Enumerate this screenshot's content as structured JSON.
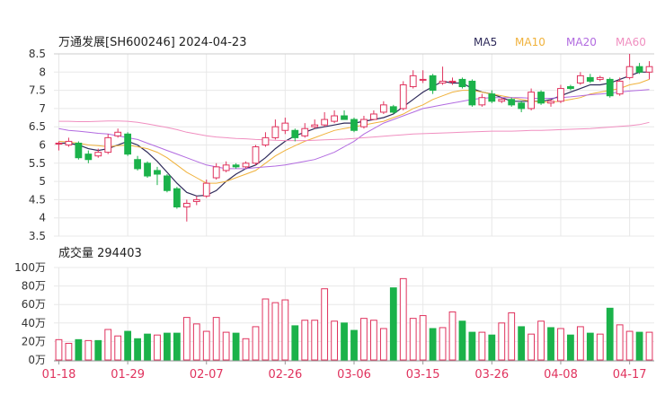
{
  "chart_data": {
    "type": "candlestick_with_volume",
    "title": "万通发展[SH600246] 2024-04-23",
    "price_panel": {
      "yticks": [
        "8.5",
        "8",
        "7.5",
        "7",
        "6.5",
        "6",
        "5.5",
        "5",
        "4.5",
        "4",
        "3.5"
      ],
      "ylim": [
        3.5,
        8.5
      ],
      "legend": [
        {
          "name": "MA5",
          "color": "#2e2a5a"
        },
        {
          "name": "MA10",
          "color": "#f0b23c"
        },
        {
          "name": "MA20",
          "color": "#b26be0"
        },
        {
          "name": "MA60",
          "color": "#f08fc0"
        }
      ],
      "candles": [
        [
          6.05,
          6.05,
          6.1,
          5.85
        ],
        [
          6.0,
          6.1,
          6.2,
          5.95
        ],
        [
          6.05,
          5.65,
          6.1,
          5.6
        ],
        [
          5.75,
          5.6,
          5.85,
          5.5
        ],
        [
          5.7,
          5.8,
          5.9,
          5.65
        ],
        [
          5.8,
          6.2,
          6.3,
          5.75
        ],
        [
          6.25,
          6.35,
          6.45,
          6.2
        ],
        [
          6.3,
          5.75,
          6.35,
          5.7
        ],
        [
          5.6,
          5.35,
          5.7,
          5.3
        ],
        [
          5.5,
          5.15,
          5.55,
          5.1
        ],
        [
          5.3,
          5.2,
          5.4,
          4.9
        ],
        [
          5.15,
          4.75,
          5.2,
          4.7
        ],
        [
          4.8,
          4.3,
          4.85,
          4.25
        ],
        [
          4.3,
          4.4,
          4.5,
          3.9
        ],
        [
          4.45,
          4.5,
          4.6,
          4.35
        ],
        [
          4.6,
          4.95,
          5.05,
          4.55
        ],
        [
          5.1,
          5.4,
          5.5,
          5.05
        ],
        [
          5.3,
          5.45,
          5.55,
          5.25
        ],
        [
          5.45,
          5.4,
          5.5,
          5.35
        ],
        [
          5.4,
          5.5,
          5.55,
          5.35
        ],
        [
          5.5,
          5.95,
          6.0,
          5.45
        ],
        [
          6.0,
          6.2,
          6.35,
          5.95
        ],
        [
          6.2,
          6.5,
          6.7,
          6.15
        ],
        [
          6.4,
          6.6,
          6.75,
          6.3
        ],
        [
          6.4,
          6.2,
          6.45,
          6.1
        ],
        [
          6.25,
          6.45,
          6.6,
          6.2
        ],
        [
          6.5,
          6.55,
          6.7,
          6.45
        ],
        [
          6.55,
          6.7,
          6.9,
          6.5
        ],
        [
          6.65,
          6.8,
          6.95,
          6.6
        ],
        [
          6.8,
          6.7,
          6.95,
          6.7
        ],
        [
          6.7,
          6.4,
          6.75,
          6.35
        ],
        [
          6.5,
          6.7,
          6.8,
          6.45
        ],
        [
          6.7,
          6.85,
          6.95,
          6.7
        ],
        [
          6.9,
          7.1,
          7.2,
          6.85
        ],
        [
          7.05,
          6.9,
          7.1,
          6.85
        ],
        [
          7.0,
          7.65,
          7.75,
          6.95
        ],
        [
          7.6,
          7.9,
          8.05,
          7.55
        ],
        [
          7.8,
          7.8,
          8.05,
          7.7
        ],
        [
          7.9,
          7.5,
          7.95,
          7.4
        ],
        [
          7.7,
          7.75,
          8.15,
          7.65
        ],
        [
          7.75,
          7.75,
          7.85,
          7.65
        ],
        [
          7.8,
          7.6,
          7.85,
          7.55
        ],
        [
          7.75,
          7.1,
          7.8,
          7.05
        ],
        [
          7.1,
          7.3,
          7.4,
          7.05
        ],
        [
          7.4,
          7.2,
          7.5,
          7.15
        ],
        [
          7.2,
          7.25,
          7.3,
          7.15
        ],
        [
          7.25,
          7.1,
          7.3,
          7.05
        ],
        [
          7.15,
          7.0,
          7.2,
          6.9
        ],
        [
          7.0,
          7.45,
          7.55,
          6.95
        ],
        [
          7.45,
          7.15,
          7.5,
          7.1
        ],
        [
          7.15,
          7.2,
          7.25,
          7.05
        ],
        [
          7.2,
          7.55,
          7.65,
          7.15
        ],
        [
          7.6,
          7.55,
          7.65,
          7.5
        ],
        [
          7.7,
          7.9,
          8.0,
          7.65
        ],
        [
          7.85,
          7.75,
          7.95,
          7.7
        ],
        [
          7.8,
          7.85,
          7.9,
          7.75
        ],
        [
          7.8,
          7.35,
          7.85,
          7.3
        ],
        [
          7.4,
          7.75,
          7.85,
          7.35
        ],
        [
          7.85,
          8.15,
          8.5,
          7.8
        ],
        [
          8.15,
          8.0,
          8.25,
          7.95
        ],
        [
          8.0,
          8.15,
          8.3,
          7.8
        ]
      ],
      "ma": {
        "MA5": [
          6.05,
          6.05,
          6.0,
          5.9,
          5.85,
          5.9,
          6.0,
          6.1,
          6.0,
          5.8,
          5.55,
          5.25,
          4.95,
          4.7,
          4.6,
          4.62,
          4.75,
          5.0,
          5.2,
          5.35,
          5.45,
          5.65,
          5.9,
          6.1,
          6.25,
          6.35,
          6.45,
          6.5,
          6.55,
          6.6,
          6.6,
          6.65,
          6.7,
          6.75,
          6.85,
          7.05,
          7.25,
          7.45,
          7.6,
          7.75,
          7.7,
          7.7,
          7.55,
          7.45,
          7.4,
          7.3,
          7.2,
          7.2,
          7.2,
          7.2,
          7.25,
          7.35,
          7.45,
          7.55,
          7.65,
          7.65,
          7.7,
          7.8,
          7.9,
          8.0,
          8.0
        ],
        "MA10": [
          6.1,
          6.08,
          6.05,
          6.0,
          5.98,
          5.95,
          5.98,
          6.0,
          5.95,
          5.9,
          5.8,
          5.65,
          5.45,
          5.25,
          5.1,
          4.95,
          4.95,
          5.0,
          5.1,
          5.2,
          5.3,
          5.5,
          5.7,
          5.85,
          5.98,
          6.1,
          6.2,
          6.3,
          6.4,
          6.45,
          6.5,
          6.55,
          6.6,
          6.65,
          6.75,
          6.85,
          7.0,
          7.1,
          7.25,
          7.35,
          7.45,
          7.5,
          7.5,
          7.45,
          7.4,
          7.35,
          7.3,
          7.25,
          7.2,
          7.18,
          7.18,
          7.2,
          7.25,
          7.3,
          7.4,
          7.45,
          7.5,
          7.55,
          7.65,
          7.7,
          7.8
        ],
        "MA20": [
          6.45,
          6.4,
          6.38,
          6.35,
          6.32,
          6.3,
          6.25,
          6.2,
          6.15,
          6.05,
          5.95,
          5.85,
          5.75,
          5.65,
          5.55,
          5.45,
          5.4,
          5.35,
          5.35,
          5.35,
          5.38,
          5.4,
          5.42,
          5.45,
          5.5,
          5.55,
          5.6,
          5.7,
          5.8,
          5.95,
          6.1,
          6.3,
          6.45,
          6.6,
          6.7,
          6.8,
          6.9,
          7.0,
          7.05,
          7.1,
          7.15,
          7.2,
          7.25,
          7.28,
          7.3,
          7.3,
          7.3,
          7.3,
          7.28,
          7.28,
          7.28,
          7.3,
          7.32,
          7.35,
          7.38,
          7.4,
          7.42,
          7.45,
          7.48,
          7.5,
          7.52
        ],
        "MA60": [
          6.65,
          6.65,
          6.64,
          6.64,
          6.65,
          6.66,
          6.66,
          6.65,
          6.62,
          6.58,
          6.53,
          6.48,
          6.42,
          6.35,
          6.3,
          6.25,
          6.22,
          6.2,
          6.18,
          6.17,
          6.15,
          6.14,
          6.13,
          6.12,
          6.12,
          6.12,
          6.13,
          6.14,
          6.15,
          6.16,
          6.18,
          6.2,
          6.22,
          6.24,
          6.26,
          6.28,
          6.3,
          6.31,
          6.32,
          6.33,
          6.34,
          6.35,
          6.36,
          6.37,
          6.38,
          6.38,
          6.38,
          6.39,
          6.4,
          6.4,
          6.41,
          6.42,
          6.43,
          6.44,
          6.45,
          6.47,
          6.49,
          6.51,
          6.53,
          6.56,
          6.62
        ]
      }
    },
    "volume_panel": {
      "label": "成交量 294403",
      "yticks": [
        "100万",
        "80万",
        "60万",
        "40万",
        "20万",
        "0万"
      ],
      "ylim": [
        0,
        100
      ],
      "unit": "万",
      "values": [
        22,
        18,
        22,
        21,
        21,
        33,
        26,
        31,
        23,
        28,
        27,
        29,
        29,
        46,
        39,
        31,
        46,
        30,
        29,
        23,
        36,
        66,
        62,
        65,
        37,
        43,
        43,
        77,
        42,
        40,
        32,
        45,
        43,
        34,
        78,
        88,
        45,
        48,
        34,
        35,
        52,
        42,
        30,
        30,
        27,
        40,
        51,
        36,
        28,
        42,
        35,
        34,
        27,
        36,
        29,
        28,
        56,
        38,
        31,
        30,
        30
      ],
      "up": [
        true,
        true,
        false,
        true,
        false,
        true,
        true,
        false,
        false,
        false,
        true,
        false,
        false,
        true,
        true,
        true,
        true,
        true,
        false,
        true,
        true,
        true,
        true,
        true,
        false,
        true,
        true,
        true,
        true,
        false,
        false,
        true,
        true,
        true,
        false,
        true,
        true,
        true,
        false,
        true,
        true,
        false,
        false,
        true,
        false,
        true,
        true,
        false,
        true,
        true,
        false,
        true,
        false,
        true,
        false,
        true,
        false,
        true,
        true,
        false,
        true
      ]
    },
    "x_labels": [
      "01-18",
      "01-29",
      "02-07",
      "02-26",
      "03-06",
      "03-15",
      "03-26",
      "04-08",
      "04-17"
    ],
    "x_label_positions": [
      0,
      7,
      15,
      23,
      30,
      37,
      44,
      51,
      58
    ],
    "colors": {
      "up": "#e0335e",
      "down": "#1bb24a",
      "grid": "#e8e8e8",
      "axis_text": "#333333"
    }
  }
}
